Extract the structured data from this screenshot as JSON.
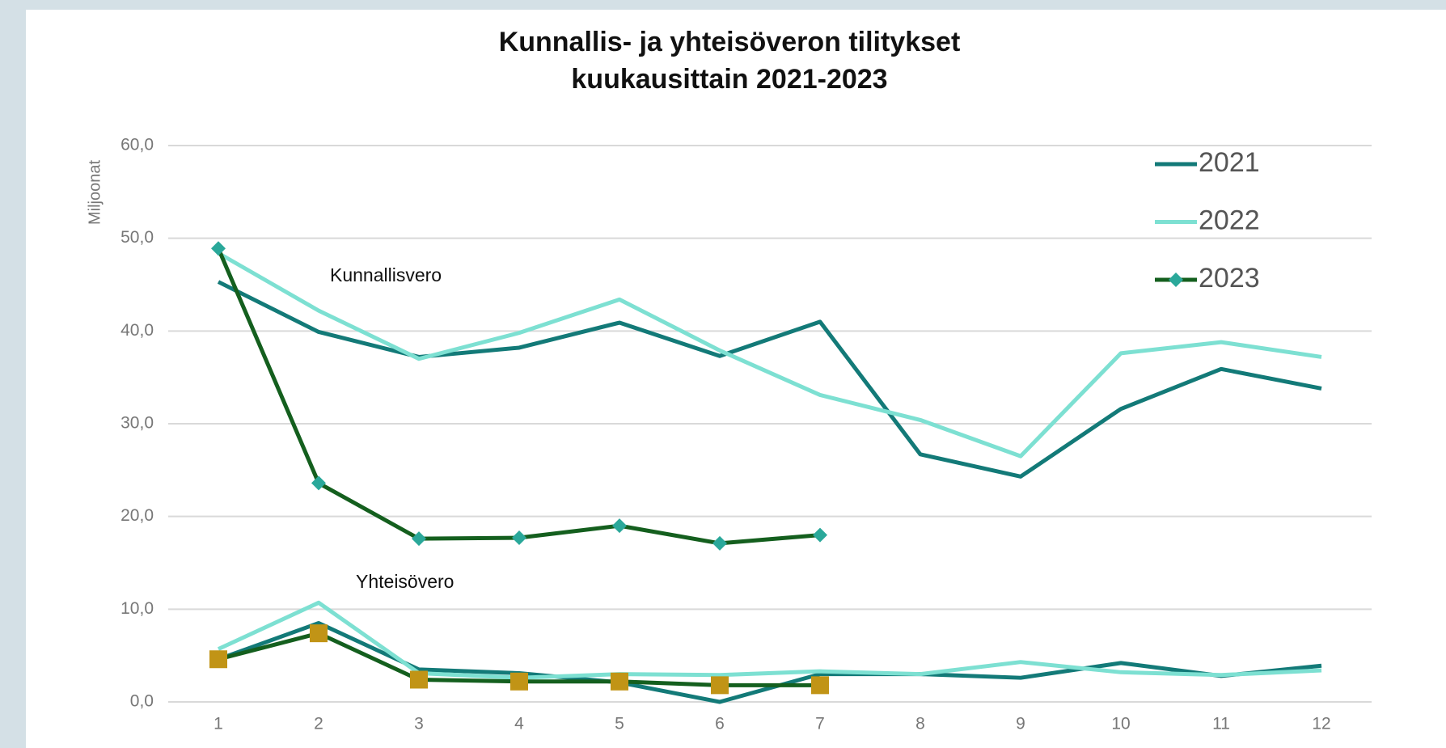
{
  "chart_data": {
    "type": "line",
    "title": [
      "Kunnallis- ja yhteisöveron tilitykset",
      "kuukausittain 2021-2023"
    ],
    "y_label": "Miljoonat",
    "annotations": [
      "Kunnallisvero",
      "Yhteisövero"
    ],
    "categories": [
      "1",
      "2",
      "3",
      "4",
      "5",
      "6",
      "7",
      "8",
      "9",
      "10",
      "11",
      "12"
    ],
    "ylim": [
      0,
      60
    ],
    "yticks": [
      {
        "value": 0,
        "label": "0,0"
      },
      {
        "value": 10,
        "label": "10,0"
      },
      {
        "value": 20,
        "label": "20,0"
      },
      {
        "value": 30,
        "label": "30,0"
      },
      {
        "value": 40,
        "label": "40,0"
      },
      {
        "value": 50,
        "label": "50,0"
      },
      {
        "value": 60,
        "label": "60,0"
      }
    ],
    "grid": true,
    "legend": "top-right",
    "series": [
      {
        "name": "2021",
        "color": "#137a78",
        "values": [
          45.3,
          39.9,
          37.2,
          38.2,
          40.9,
          37.3,
          41.0,
          26.7,
          24.3,
          31.6,
          35.9,
          33.8
        ]
      },
      {
        "name": "2022",
        "color": "#7de0d2",
        "values": [
          48.4,
          42.2,
          37.0,
          39.8,
          43.4,
          37.9,
          33.1,
          30.4,
          26.5,
          37.6,
          38.8,
          37.2
        ]
      },
      {
        "name": "2023",
        "color": "#145f1e",
        "marker": "diamond",
        "marker_color": "#2aa89a",
        "values": [
          48.9,
          23.6,
          17.6,
          17.7,
          19.0,
          17.1,
          18.0,
          null,
          null,
          null,
          null,
          null
        ]
      },
      {
        "color": "#137a78",
        "values": [
          4.6,
          8.5,
          3.5,
          3.1,
          2.1,
          0.0,
          3.0,
          3.0,
          2.6,
          4.2,
          2.8,
          3.9
        ]
      },
      {
        "color": "#7de0d2",
        "values": [
          5.7,
          10.7,
          3.1,
          2.6,
          3.0,
          2.9,
          3.3,
          3.0,
          4.3,
          3.2,
          2.9,
          3.4
        ]
      },
      {
        "color": "#145f1e",
        "marker": "square",
        "marker_color": "#c19416",
        "values": [
          4.6,
          7.4,
          2.4,
          2.2,
          2.2,
          1.8,
          1.8,
          null,
          null,
          null,
          null,
          null
        ]
      }
    ]
  }
}
